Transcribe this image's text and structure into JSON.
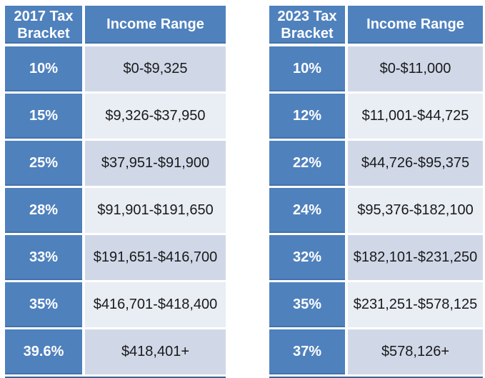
{
  "page": {
    "background": "#FFFFFF"
  },
  "colors": {
    "header_blue": "#4F81BD",
    "row_band_dark": "#D0D8E8",
    "row_band_light": "#E9EDF4",
    "bottom_border_blue": "#3E6491",
    "header_text": "#FFFFFF",
    "income_text": "#1A1A1A"
  },
  "tables": [
    {
      "name": "2017-tax-brackets",
      "headers": {
        "bracket": "2017 Tax Bracket",
        "income": "Income Range"
      },
      "rows": [
        {
          "bracket": "10%",
          "income": "$0-$9,325"
        },
        {
          "bracket": "15%",
          "income": "$9,326-$37,950"
        },
        {
          "bracket": "25%",
          "income": "$37,951-$91,900"
        },
        {
          "bracket": "28%",
          "income": "$91,901-$191,650"
        },
        {
          "bracket": "33%",
          "income": "$191,651-$416,700"
        },
        {
          "bracket": "35%",
          "income": "$416,701-$418,400"
        },
        {
          "bracket": "39.6%",
          "income": "$418,401+"
        }
      ]
    },
    {
      "name": "2023-tax-brackets",
      "headers": {
        "bracket": "2023 Tax Bracket",
        "income": "Income Range"
      },
      "rows": [
        {
          "bracket": "10%",
          "income": "$0-$11,000"
        },
        {
          "bracket": "12%",
          "income": "$11,001-$44,725"
        },
        {
          "bracket": "22%",
          "income": "$44,726-$95,375"
        },
        {
          "bracket": "24%",
          "income": "$95,376-$182,100"
        },
        {
          "bracket": "32%",
          "income": "$182,101-$231,250"
        },
        {
          "bracket": "35%",
          "income": "$231,251-$578,125"
        },
        {
          "bracket": "37%",
          "income": "$578,126+"
        }
      ]
    }
  ]
}
